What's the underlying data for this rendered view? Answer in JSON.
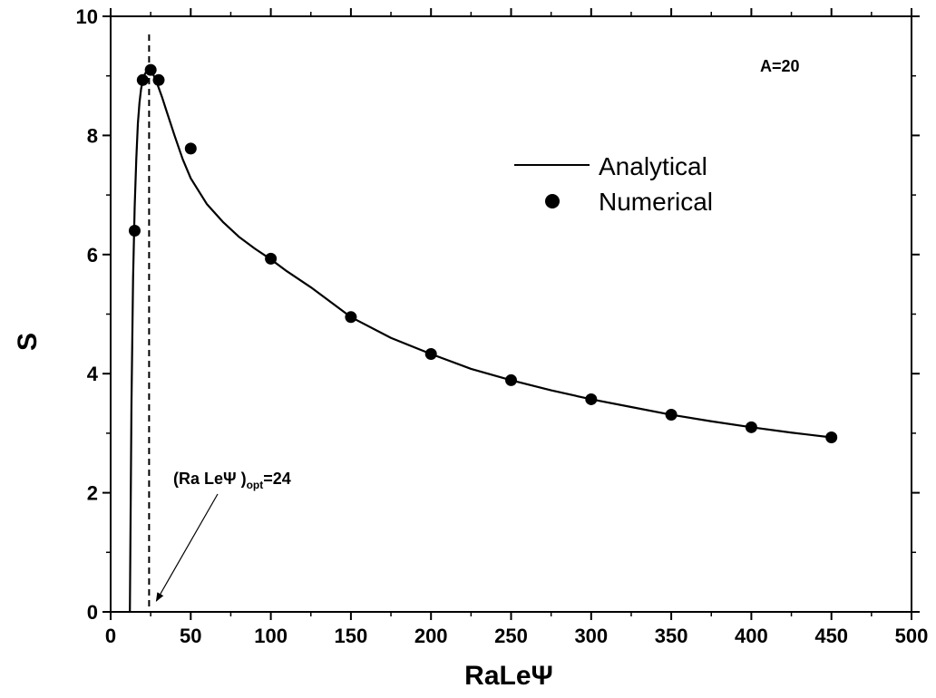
{
  "chart_data": {
    "type": "line",
    "xlabel": "RaLeΨ",
    "ylabel": "S",
    "xlim": [
      0,
      500
    ],
    "ylim": [
      0,
      10
    ],
    "x_ticks": [
      0,
      50,
      100,
      150,
      200,
      250,
      300,
      350,
      400,
      450,
      500
    ],
    "y_ticks": [
      0,
      2,
      4,
      6,
      8,
      10
    ],
    "x_tick_labels": [
      "0",
      "50",
      "100",
      "150",
      "200",
      "250",
      "300",
      "350",
      "400",
      "450",
      "500"
    ],
    "y_tick_labels": [
      "0",
      "2",
      "4",
      "6",
      "8",
      "10"
    ],
    "grid": false,
    "legend_position": "upper-right",
    "series": [
      {
        "name": "Analytical",
        "style": "line",
        "color": "#000000",
        "x": [
          12,
          13,
          14,
          15,
          16,
          17,
          18,
          19,
          20,
          21,
          22,
          23,
          24,
          25,
          26,
          27,
          28,
          29,
          30,
          32,
          35,
          40,
          45,
          50,
          60,
          70,
          80,
          90,
          100,
          110,
          125,
          150,
          175,
          200,
          225,
          250,
          275,
          300,
          325,
          350,
          375,
          400,
          425,
          450
        ],
        "y": [
          0,
          3.5,
          5.6,
          6.8,
          7.6,
          8.2,
          8.55,
          8.78,
          8.92,
          9.01,
          9.06,
          9.08,
          9.09,
          9.08,
          9.05,
          9.0,
          8.94,
          8.87,
          8.8,
          8.65,
          8.4,
          7.99,
          7.6,
          7.28,
          6.85,
          6.55,
          6.3,
          6.1,
          5.92,
          5.72,
          5.45,
          4.95,
          4.6,
          4.33,
          4.08,
          3.89,
          3.72,
          3.57,
          3.44,
          3.31,
          3.2,
          3.1,
          3.01,
          2.93
        ]
      },
      {
        "name": "Numerical",
        "style": "scatter",
        "color": "#000000",
        "x": [
          15,
          20,
          25,
          30,
          50,
          100,
          150,
          200,
          250,
          300,
          350,
          400,
          450
        ],
        "y": [
          6.4,
          8.93,
          9.1,
          8.93,
          7.78,
          5.93,
          4.95,
          4.33,
          3.89,
          3.57,
          3.31,
          3.1,
          2.93
        ]
      }
    ],
    "reference_line": {
      "orientation": "vertical",
      "x": 24,
      "style": "dashed"
    },
    "annotations": [
      {
        "text_main": "(Ra LeΨ )",
        "text_sub": "opt",
        "text_end": "=24",
        "arrow_to": {
          "x": 24,
          "y": 0
        }
      },
      {
        "text": "A=20"
      }
    ]
  }
}
